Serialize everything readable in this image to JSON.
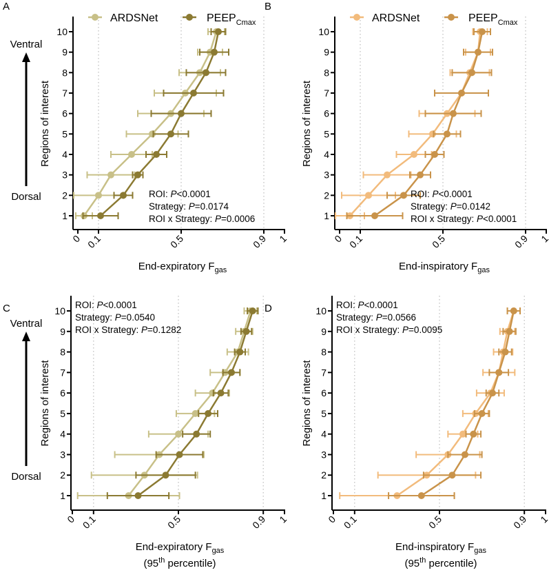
{
  "figure": {
    "y_axis_label": "Regions of interest",
    "ventral_label": "Ventral",
    "dorsal_label": "Dorsal",
    "series_names": [
      "ARDSNet",
      "PEEP",
      "Cmax"
    ]
  },
  "chart_data": [
    {
      "panel": "A",
      "type": "line",
      "xlabel": "End-expiratory F",
      "xlabel_sub": "gas",
      "xlabel_line2": "",
      "ylabel": "Regions of interest",
      "xlim": [
        0,
        1
      ],
      "xticks": [
        "0",
        "0.1",
        "0.5",
        "0.9",
        "1"
      ],
      "xtick_values": [
        0,
        0.1,
        0.5,
        0.9,
        1
      ],
      "gridlines_x": [
        0.1,
        0.5,
        0.9
      ],
      "y": [
        1,
        2,
        3,
        4,
        5,
        6,
        7,
        8,
        9,
        10
      ],
      "legend": {
        "placement": "top",
        "entries": [
          "ARDSNet",
          "PEEP"
        ],
        "subscript": "Cmax"
      },
      "stats": [
        {
          "label": "ROI: ",
          "p": "P",
          "value": "<0.0001"
        },
        {
          "label": "Strategy: ",
          "p": "P",
          "value": "=0.0174"
        },
        {
          "label": "ROI x Strategy: ",
          "p": "P",
          "value": "=0.0006"
        }
      ],
      "stats_placement": "bottom-right",
      "colors": [
        "#c8c088",
        "#8b7a32"
      ],
      "series": [
        {
          "name": "ARDSNet",
          "values": [
            0.03,
            0.1,
            0.16,
            0.26,
            0.36,
            0.45,
            0.52,
            0.59,
            0.64,
            0.67
          ],
          "error": [
            0.04,
            0.12,
            0.115,
            0.1,
            0.125,
            0.16,
            0.15,
            0.1,
            0.06,
            0.04
          ]
        },
        {
          "name": "PEEPCmax",
          "values": [
            0.11,
            0.22,
            0.29,
            0.38,
            0.45,
            0.5,
            0.56,
            0.62,
            0.66,
            0.68
          ],
          "error": [
            0.085,
            0.045,
            0.025,
            0.05,
            0.085,
            0.145,
            0.145,
            0.095,
            0.07,
            0.035
          ]
        }
      ]
    },
    {
      "panel": "B",
      "type": "line",
      "xlabel": "End-inspiratory F",
      "xlabel_sub": "gas",
      "xlabel_line2": "",
      "ylabel": "Regions of interest",
      "xlim": [
        0,
        1
      ],
      "xticks": [
        "0",
        "0.1",
        "0.5",
        "0.9",
        "1"
      ],
      "xtick_values": [
        0,
        0.1,
        0.5,
        0.9,
        1
      ],
      "gridlines_x": [
        0.1,
        0.5,
        0.9
      ],
      "y": [
        1,
        2,
        3,
        4,
        5,
        6,
        7,
        8,
        9,
        10
      ],
      "legend": {
        "placement": "top",
        "entries": [
          "ARDSNet",
          "PEEP"
        ],
        "subscript": "Cmax"
      },
      "stats": [
        {
          "label": "ROI: ",
          "p": "P",
          "value": "<0.0001"
        },
        {
          "label": "Strategy: ",
          "p": "P",
          "value": "=0.0142"
        },
        {
          "label": "ROI x Strategy: ",
          "p": "P",
          "value": "<0.0001"
        }
      ],
      "stats_placement": "bottom-right",
      "colors": [
        "#f2bb7c",
        "#c9934a"
      ],
      "series": [
        {
          "name": "ARDSNet",
          "values": [
            0.05,
            0.14,
            0.23,
            0.36,
            0.45,
            0.52,
            0.59,
            0.63,
            0.67,
            0.68
          ],
          "error": [
            0.07,
            0.13,
            0.115,
            0.085,
            0.115,
            0.135,
            0.13,
            0.095,
            0.06,
            0.035
          ]
        },
        {
          "name": "PEEPCmax",
          "values": [
            0.17,
            0.31,
            0.39,
            0.46,
            0.52,
            0.55,
            0.59,
            0.64,
            0.67,
            0.69
          ],
          "error": [
            0.135,
            0.08,
            0.05,
            0.045,
            0.065,
            0.135,
            0.13,
            0.095,
            0.07,
            0.04
          ]
        }
      ]
    },
    {
      "panel": "C",
      "type": "line",
      "xlabel": "End-expiratory F",
      "xlabel_sub": "gas",
      "xlabel_line2": "(95",
      "xlabel_line2_sup": "th",
      "xlabel_line2_end": " percentile)",
      "ylabel": "Regions of interest",
      "xlim": [
        0,
        1
      ],
      "xticks": [
        "0",
        "0.1",
        "0.5",
        "0.9",
        "1"
      ],
      "xtick_values": [
        0,
        0.1,
        0.5,
        0.9,
        1
      ],
      "gridlines_x": [
        0.1,
        0.5,
        0.9
      ],
      "y": [
        1,
        2,
        3,
        4,
        5,
        6,
        7,
        8,
        9,
        10
      ],
      "stats": [
        {
          "label": "ROI: ",
          "p": "P",
          "value": "<0.0001"
        },
        {
          "label": "Strategy: ",
          "p": "P",
          "value": "=0.0540"
        },
        {
          "label": "ROI x Strategy: ",
          "p": "P",
          "value": "=0.1282"
        }
      ],
      "stats_placement": "top-left",
      "colors": [
        "#c8c088",
        "#8b7a32"
      ],
      "series": [
        {
          "name": "ARDSNet",
          "values": [
            0.265,
            0.34,
            0.41,
            0.5,
            0.58,
            0.66,
            0.72,
            0.78,
            0.81,
            0.84
          ],
          "error": [
            0.24,
            0.25,
            0.21,
            0.14,
            0.09,
            0.08,
            0.07,
            0.05,
            0.04,
            0.03
          ]
        },
        {
          "name": "PEEPCmax",
          "values": [
            0.31,
            0.44,
            0.505,
            0.585,
            0.64,
            0.7,
            0.75,
            0.79,
            0.82,
            0.85
          ],
          "error": [
            0.145,
            0.14,
            0.11,
            0.065,
            0.045,
            0.035,
            0.04,
            0.025,
            0.025,
            0.025
          ]
        }
      ]
    },
    {
      "panel": "D",
      "type": "line",
      "xlabel": "End-inspiratory F",
      "xlabel_sub": "gas",
      "xlabel_line2": "(95",
      "xlabel_line2_sup": "th",
      "xlabel_line2_end": " percentile)",
      "ylabel": "Regions of interest",
      "xlim": [
        0,
        1
      ],
      "xticks": [
        "0",
        "0.1",
        "0.5",
        "0.9",
        "1"
      ],
      "xtick_values": [
        0,
        0.1,
        0.5,
        0.9,
        1
      ],
      "gridlines_x": [
        0.1,
        0.5,
        0.9
      ],
      "y": [
        1,
        2,
        3,
        4,
        5,
        6,
        7,
        8,
        9,
        10
      ],
      "stats": [
        {
          "label": "ROI: ",
          "p": "P",
          "value": "<0.0001"
        },
        {
          "label": "Strategy: ",
          "p": "P",
          "value": "=0.0566"
        },
        {
          "label": "ROI x Strategy: ",
          "p": "P",
          "value": "=0.0095"
        }
      ],
      "stats_placement": "top-left",
      "colors": [
        "#f2bb7c",
        "#c9934a"
      ],
      "series": [
        {
          "name": "ARDSNet",
          "values": [
            0.3,
            0.44,
            0.54,
            0.61,
            0.67,
            0.74,
            0.78,
            0.8,
            0.82,
            0.85
          ],
          "error": [
            0.27,
            0.23,
            0.15,
            0.07,
            0.06,
            0.065,
            0.075,
            0.045,
            0.035,
            0.03
          ]
        },
        {
          "name": "PEEPCmax",
          "values": [
            0.415,
            0.56,
            0.62,
            0.66,
            0.7,
            0.75,
            0.78,
            0.81,
            0.83,
            0.85
          ],
          "error": [
            0.155,
            0.135,
            0.08,
            0.035,
            0.035,
            0.03,
            0.045,
            0.03,
            0.03,
            0.03
          ]
        }
      ]
    }
  ]
}
